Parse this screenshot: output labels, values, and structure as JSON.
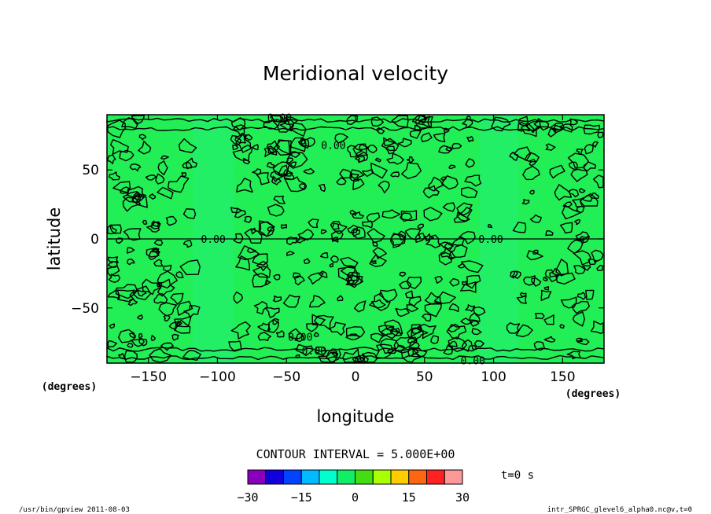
{
  "chart_data": {
    "type": "contour",
    "title": "Meridional velocity",
    "xlabel": "longitude",
    "ylabel": "latitude",
    "x_unit": "(degrees)",
    "y_unit": "(degrees)",
    "xlim": [
      -180,
      180
    ],
    "ylim": [
      -90,
      90
    ],
    "xticks": [
      -150,
      -100,
      -50,
      0,
      50,
      100,
      150
    ],
    "yticks": [
      50,
      0,
      -50
    ],
    "contour_labels": [
      "0.00",
      "0.00",
      "0.00",
      "0.00",
      "0.00",
      "0.00",
      "0.00"
    ],
    "contour_interval": "CONTOUR INTERVAL = 5.000E+00",
    "field_color": "#22ee55",
    "calm_band_color": "#22ee66",
    "colorbar": {
      "colors": [
        "#8800bb",
        "#1100dd",
        "#0044ff",
        "#00bbff",
        "#00ffcc",
        "#11ee66",
        "#44dd11",
        "#aaff00",
        "#ffcc00",
        "#ff6611",
        "#ff2222",
        "#ff9999"
      ],
      "tick_labels": [
        "-30",
        "-15",
        "0",
        "15",
        "30"
      ],
      "range": [
        -30,
        30
      ]
    },
    "time_label": "t=0 s",
    "footer_left": "/usr/bin/gpview  2011-08-03",
    "footer_right": "intr_SPRGC_glevel6_alpha0.nc@v,t=0"
  }
}
